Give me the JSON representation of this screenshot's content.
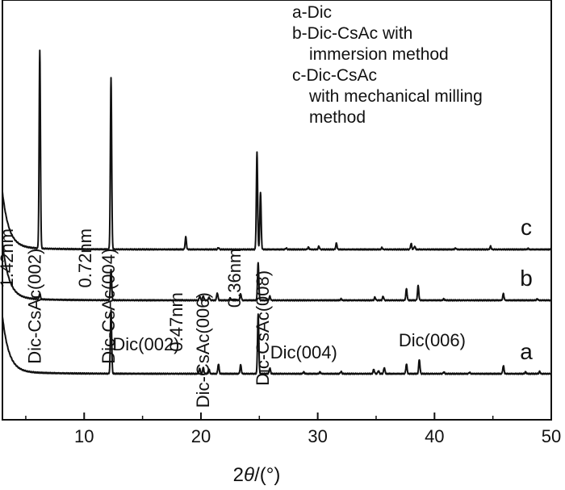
{
  "chart_data": {
    "type": "line",
    "title": "",
    "xlabel": "2θ/(°)",
    "xlabel_parts": {
      "var": "θ",
      "pre": "2",
      "post": "/(°)"
    },
    "ylabel": "",
    "xlim": [
      3,
      50
    ],
    "xticks": [
      10,
      20,
      30,
      40,
      50
    ],
    "xtick_labels": [
      "10",
      "20",
      "30",
      "40",
      "50"
    ],
    "grid": false,
    "legend": {
      "placement": "top-right",
      "lines": [
        "a-Dic",
        "b-Dic-CsAc with",
        "immersion method",
        "c-Dic-CsAc",
        "with mechanical milling",
        "method"
      ]
    },
    "series": [
      {
        "name": "a",
        "label": "a",
        "baseline": 0,
        "peaks": [
          [
            12.3,
            1.45
          ],
          [
            19.9,
            0.12
          ],
          [
            20.2,
            0.14
          ],
          [
            20.7,
            0.09
          ],
          [
            21.5,
            0.22
          ],
          [
            23.4,
            0.2
          ],
          [
            24.9,
            1.35
          ],
          [
            25.9,
            0.13
          ],
          [
            28.8,
            0.04
          ],
          [
            30.2,
            0.04
          ],
          [
            32.0,
            0.05
          ],
          [
            34.8,
            0.1
          ],
          [
            35.2,
            0.07
          ],
          [
            35.7,
            0.14
          ],
          [
            37.6,
            0.22
          ],
          [
            38.7,
            0.32
          ],
          [
            40.8,
            0.04
          ],
          [
            43.0,
            0.03
          ],
          [
            45.9,
            0.18
          ],
          [
            47.8,
            0.04
          ],
          [
            49.0,
            0.05
          ]
        ]
      },
      {
        "name": "b",
        "label": "b",
        "baseline": 1,
        "peaks": [
          [
            6.2,
            0.13
          ],
          [
            12.3,
            0.7
          ],
          [
            19.9,
            0.09
          ],
          [
            20.2,
            0.1
          ],
          [
            20.7,
            0.07
          ],
          [
            21.4,
            0.17
          ],
          [
            22.5,
            0.05
          ],
          [
            23.4,
            0.15
          ],
          [
            24.9,
            0.85
          ],
          [
            25.9,
            0.09
          ],
          [
            32.0,
            0.03
          ],
          [
            34.9,
            0.07
          ],
          [
            35.6,
            0.09
          ],
          [
            37.6,
            0.26
          ],
          [
            38.6,
            0.33
          ],
          [
            40.8,
            0.03
          ],
          [
            45.9,
            0.15
          ],
          [
            48.8,
            0.03
          ]
        ]
      },
      {
        "name": "c",
        "label": "c",
        "baseline": 2,
        "peaks": [
          [
            6.2,
            4.5
          ],
          [
            12.3,
            3.9
          ],
          [
            18.7,
            0.28
          ],
          [
            21.5,
            0.04
          ],
          [
            24.8,
            2.2
          ],
          [
            25.1,
            1.3
          ],
          [
            27.3,
            0.03
          ],
          [
            29.2,
            0.05
          ],
          [
            30.1,
            0.07
          ],
          [
            31.6,
            0.14
          ],
          [
            35.5,
            0.04
          ],
          [
            38.0,
            0.13
          ],
          [
            38.3,
            0.07
          ],
          [
            41.8,
            0.03
          ],
          [
            44.8,
            0.07
          ],
          [
            48.0,
            0.02
          ]
        ]
      }
    ],
    "annotations": [
      {
        "text": "1.42nm",
        "x": 3.9,
        "y": 3.3,
        "rotated": true
      },
      {
        "text": "Dic-CsAc(002)",
        "x": 6.3,
        "y": 2.85,
        "rotated": true
      },
      {
        "text": "0.72nm",
        "x": 10.6,
        "y": 3.3,
        "rotated": true
      },
      {
        "text": "Dic-CsAc(004)",
        "x": 12.6,
        "y": 2.85,
        "rotated": true
      },
      {
        "text": "0.47nm",
        "x": 18.4,
        "y": 1.85,
        "rotated": true
      },
      {
        "text": "Dic-CsAc(006)",
        "x": 20.7,
        "y": 1.85,
        "rotated": true
      },
      {
        "text": "0.36nm",
        "x": 23.4,
        "y": 2.85,
        "rotated": true
      },
      {
        "text": "Dic-CsAc(008)",
        "x": 25.8,
        "y": 2.35,
        "rotated": true
      },
      {
        "text": "Dic(002)",
        "x": 15.3,
        "y": 0.53,
        "rotated": false
      },
      {
        "text": "Dic(004)",
        "x": 28.8,
        "y": 0.35,
        "rotated": false
      },
      {
        "text": "Dic(006)",
        "x": 39.8,
        "y": 0.62,
        "rotated": false
      }
    ]
  }
}
